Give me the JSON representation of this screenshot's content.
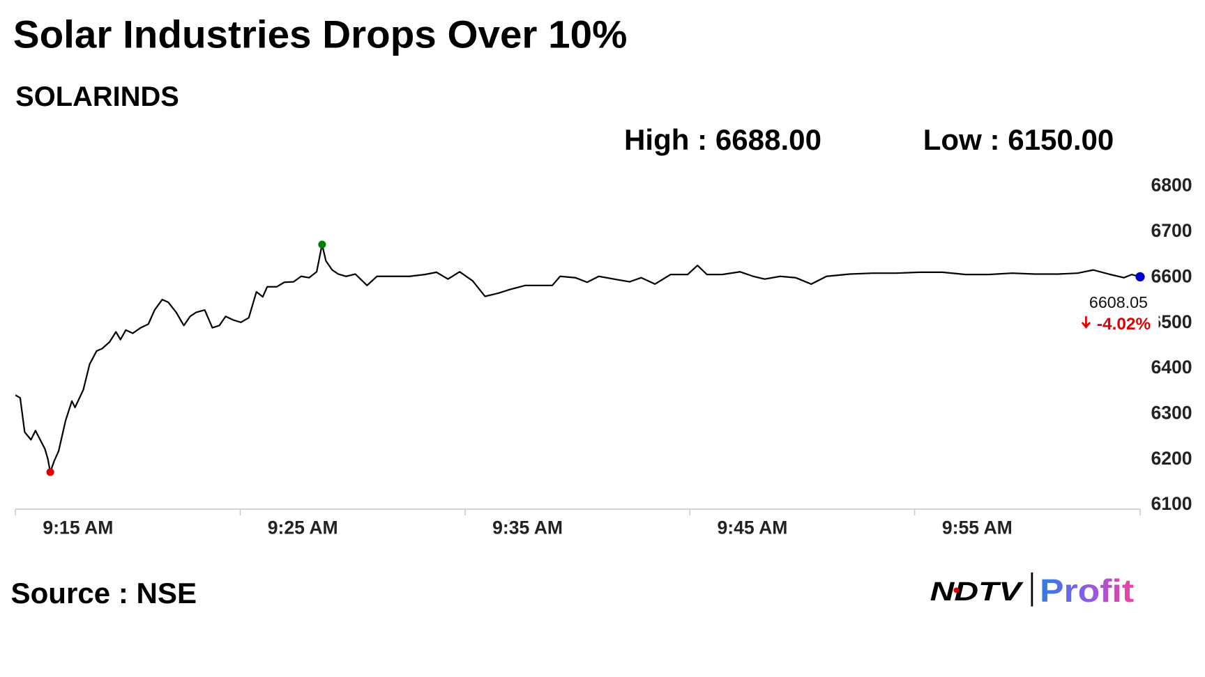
{
  "chart_data": {
    "type": "line",
    "title": "Solar Industries Drops Over 10%",
    "subtitle": "SOLARINDS",
    "high_text": "High : 6688.00",
    "low_text": "Low : 6150.00",
    "last_price": 6608.05,
    "change_label": "-4.02%",
    "source": "Source : NSE",
    "logo": [
      "NDTV",
      "Profit"
    ],
    "color": "#000000",
    "marker_colors": {
      "min": "#e00000",
      "max": "#008000",
      "last": "#0000cc"
    },
    "change_color": "#e00000",
    "xlim": [
      555,
      605.03
    ],
    "xticks": [
      {
        "value": 555,
        "label": "9:15 AM"
      },
      {
        "value": 565,
        "label": "9:25 AM"
      },
      {
        "value": 575,
        "label": "9:35 AM"
      },
      {
        "value": 585,
        "label": "9:45 AM"
      },
      {
        "value": 595,
        "label": "9:55 AM"
      }
    ],
    "ylim": [
      6100,
      6800
    ],
    "yticks": [
      6100,
      6200,
      6300,
      6400,
      6500,
      6600,
      6700,
      6800
    ],
    "x": [
      555.0,
      555.21,
      555.41,
      555.69,
      555.89,
      556.1,
      556.31,
      556.44,
      556.55,
      556.72,
      556.92,
      557.23,
      557.51,
      557.65,
      558.02,
      558.3,
      558.61,
      558.85,
      559.19,
      559.47,
      559.67,
      559.91,
      560.22,
      560.57,
      560.91,
      561.19,
      561.53,
      561.8,
      562.15,
      562.49,
      562.77,
      563.04,
      563.42,
      563.76,
      564.07,
      564.35,
      564.69,
      565.03,
      565.38,
      565.72,
      566.0,
      566.2,
      566.62,
      566.96,
      567.37,
      567.71,
      568.06,
      568.4,
      568.64,
      568.81,
      569.09,
      569.36,
      569.71,
      570.12,
      570.64,
      571.08,
      571.84,
      572.53,
      573.21,
      573.73,
      574.24,
      574.76,
      575.34,
      575.89,
      576.48,
      576.99,
      577.68,
      578.37,
      578.88,
      579.23,
      579.91,
      580.43,
      580.95,
      581.63,
      582.32,
      582.84,
      583.45,
      584.14,
      584.9,
      585.34,
      585.76,
      586.44,
      587.23,
      587.82,
      588.33,
      589.02,
      589.71,
      590.4,
      591.08,
      592.11,
      593.14,
      594.18,
      595.21,
      596.24,
      597.27,
      598.3,
      599.33,
      600.36,
      601.39,
      602.25,
      602.94,
      603.63,
      604.31,
      604.66,
      605.03
    ],
    "values": [
      6337,
      6331,
      6256,
      6239,
      6259,
      6239,
      6219,
      6197,
      6168,
      6192,
      6214,
      6281,
      6324,
      6310,
      6349,
      6405,
      6434,
      6439,
      6454,
      6476,
      6459,
      6480,
      6473,
      6485,
      6493,
      6524,
      6547,
      6541,
      6519,
      6490,
      6510,
      6519,
      6524,
      6485,
      6490,
      6510,
      6502,
      6497,
      6507,
      6564,
      6553,
      6575,
      6575,
      6585,
      6586,
      6598,
      6595,
      6608,
      6668,
      6632,
      6612,
      6603,
      6598,
      6603,
      6578,
      6598,
      6598,
      6598,
      6602,
      6607,
      6592,
      6608,
      6588,
      6554,
      6561,
      6569,
      6578,
      6578,
      6578,
      6598,
      6595,
      6585,
      6598,
      6592,
      6586,
      6595,
      6581,
      6602,
      6602,
      6622,
      6602,
      6602,
      6608,
      6598,
      6592,
      6598,
      6595,
      6581,
      6598,
      6603,
      6605,
      6605,
      6607,
      6607,
      6602,
      6602,
      6605,
      6603,
      6603,
      6605,
      6612,
      6603,
      6595,
      6602,
      6597
    ]
  }
}
